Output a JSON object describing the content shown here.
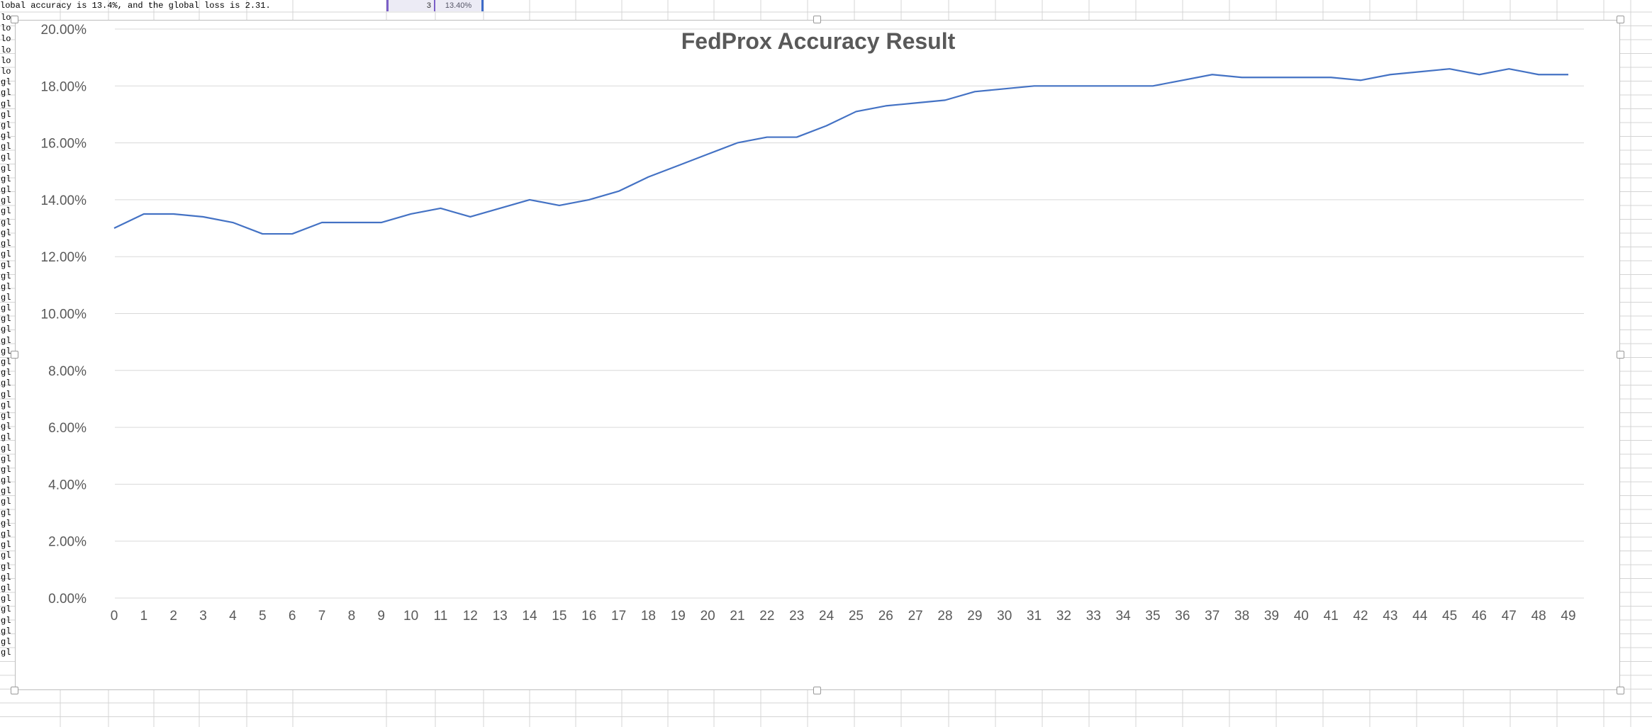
{
  "sheet": {
    "top_row_text": "lobal accuracy is 13.4%, and the global loss is 2.31.",
    "selected_cell_a": "3",
    "selected_cell_b": "13.40%",
    "left_column_fragments": [
      "lo",
      "lo",
      "lo",
      "lo",
      "lo",
      "lo",
      "gl",
      "gl",
      "gl",
      "gl",
      "gl",
      "gl",
      "gl",
      "gl",
      "gl",
      "gl",
      "gl",
      "gl",
      "gl",
      "gl",
      "gl",
      "gl",
      "gl",
      "gl",
      "gl",
      "gl",
      "gl",
      "gl",
      "gl",
      "gl",
      "gl",
      "gl",
      "gl",
      "gl",
      "gl",
      "gl",
      "gl",
      "gl",
      "gl",
      "gl",
      "gl",
      "gl",
      "gl",
      "gl",
      "gl",
      "gl",
      "gl",
      "gl",
      "gl",
      "gl",
      "gl",
      "gl",
      "gl",
      "gl",
      "gl",
      "gl",
      "gl",
      "gl",
      "gl",
      "gl"
    ]
  },
  "colors": {
    "line": "#4472C4",
    "gridline": "#d9d9d9",
    "text": "#595959",
    "sheet_grid": "#d4d4d4"
  },
  "chart_data": {
    "type": "line",
    "title": "FedProx Accuracy Result",
    "xlabel": "",
    "ylabel": "",
    "ylim": [
      0,
      0.2
    ],
    "y_ticks": [
      0,
      0.02,
      0.04,
      0.06,
      0.08,
      0.1,
      0.12,
      0.14,
      0.16,
      0.18,
      0.2
    ],
    "y_tick_labels": [
      "0.00%",
      "2.00%",
      "4.00%",
      "6.00%",
      "8.00%",
      "10.00%",
      "12.00%",
      "14.00%",
      "16.00%",
      "18.00%",
      "20.00%"
    ],
    "grid": true,
    "legend": "none",
    "categories": [
      "0",
      "1",
      "2",
      "3",
      "4",
      "5",
      "6",
      "7",
      "8",
      "9",
      "10",
      "11",
      "12",
      "13",
      "14",
      "15",
      "16",
      "17",
      "18",
      "19",
      "20",
      "21",
      "22",
      "23",
      "24",
      "25",
      "26",
      "27",
      "28",
      "29",
      "30",
      "31",
      "32",
      "33",
      "34",
      "35",
      "36",
      "37",
      "38",
      "39",
      "40",
      "41",
      "42",
      "43",
      "44",
      "45",
      "46",
      "47",
      "48",
      "49"
    ],
    "series": [
      {
        "values": [
          0.13,
          0.135,
          0.135,
          0.134,
          0.132,
          0.128,
          0.128,
          0.132,
          0.132,
          0.132,
          0.135,
          0.137,
          0.134,
          0.137,
          0.14,
          0.138,
          0.14,
          0.143,
          0.148,
          0.152,
          0.156,
          0.16,
          0.162,
          0.162,
          0.166,
          0.171,
          0.173,
          0.174,
          0.175,
          0.178,
          0.179,
          0.18,
          0.18,
          0.18,
          0.18,
          0.18,
          0.182,
          0.184,
          0.183,
          0.183,
          0.183,
          0.183,
          0.182,
          0.184,
          0.185,
          0.186,
          0.184,
          0.186,
          0.184,
          0.184
        ]
      }
    ]
  }
}
